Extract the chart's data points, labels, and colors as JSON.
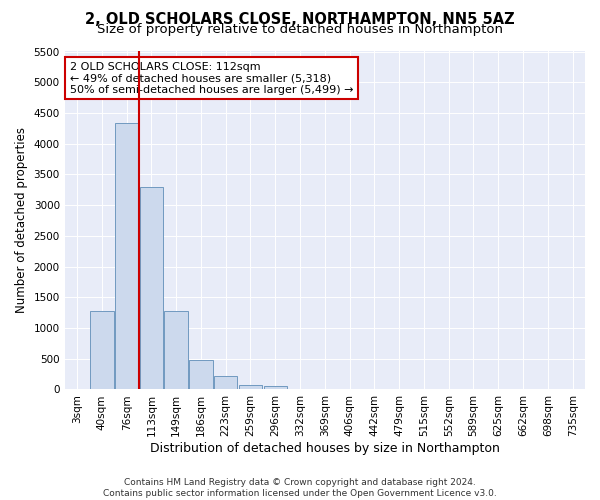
{
  "title": "2, OLD SCHOLARS CLOSE, NORTHAMPTON, NN5 5AZ",
  "subtitle": "Size of property relative to detached houses in Northampton",
  "xlabel": "Distribution of detached houses by size in Northampton",
  "ylabel": "Number of detached properties",
  "categories": [
    "3sqm",
    "40sqm",
    "76sqm",
    "113sqm",
    "149sqm",
    "186sqm",
    "223sqm",
    "259sqm",
    "296sqm",
    "332sqm",
    "369sqm",
    "406sqm",
    "442sqm",
    "479sqm",
    "515sqm",
    "552sqm",
    "589sqm",
    "625sqm",
    "662sqm",
    "698sqm",
    "735sqm"
  ],
  "values": [
    0,
    1270,
    4340,
    3300,
    1280,
    480,
    215,
    80,
    50,
    0,
    0,
    0,
    0,
    0,
    0,
    0,
    0,
    0,
    0,
    0,
    0
  ],
  "bar_color": "#ccd9ed",
  "bar_edge_color": "#7099c0",
  "vline_color": "#cc0000",
  "vline_x": 2.5,
  "annotation_text": "2 OLD SCHOLARS CLOSE: 112sqm\n← 49% of detached houses are smaller (5,318)\n50% of semi-detached houses are larger (5,499) →",
  "annotation_box_color": "#ffffff",
  "annotation_box_edge": "#cc0000",
  "ylim": [
    0,
    5500
  ],
  "yticks": [
    0,
    500,
    1000,
    1500,
    2000,
    2500,
    3000,
    3500,
    4000,
    4500,
    5000,
    5500
  ],
  "fig_bg_color": "#ffffff",
  "plot_bg_color": "#e8ecf8",
  "footer": "Contains HM Land Registry data © Crown copyright and database right 2024.\nContains public sector information licensed under the Open Government Licence v3.0.",
  "title_fontsize": 10.5,
  "subtitle_fontsize": 9.5,
  "xlabel_fontsize": 9,
  "ylabel_fontsize": 8.5,
  "tick_fontsize": 7.5,
  "footer_fontsize": 6.5,
  "annotation_fontsize": 8
}
